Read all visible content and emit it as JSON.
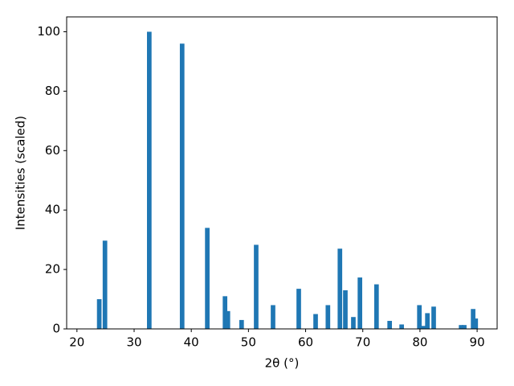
{
  "chart_data": {
    "type": "bar",
    "x_label": "2θ (°)",
    "y_label": "Intensities (scaled)",
    "x": [
      23.9,
      24.9,
      32.65,
      38.4,
      42.8,
      45.9,
      46.4,
      48.8,
      51.35,
      54.3,
      58.8,
      61.75,
      63.9,
      66.0,
      66.95,
      68.35,
      69.5,
      72.4,
      74.7,
      76.8,
      79.9,
      80.6,
      81.3,
      82.4,
      87.2,
      87.75,
      89.3,
      89.75
    ],
    "values": [
      10,
      29.7,
      100,
      96,
      34,
      11,
      6,
      3,
      28.3,
      8,
      13.5,
      5,
      8,
      27,
      13,
      4,
      17.3,
      15,
      2.7,
      1.5,
      8,
      1,
      5.3,
      7.5,
      1.3,
      1.3,
      6.7,
      3.5
    ],
    "color": "#1f77b4",
    "xlim": [
      18.2,
      93.5
    ],
    "xticks": [
      20,
      30,
      40,
      50,
      60,
      70,
      80,
      90
    ],
    "ylim": [
      0,
      105
    ],
    "yticks": [
      0,
      20,
      40,
      60,
      80,
      100
    ],
    "grid": false
  }
}
